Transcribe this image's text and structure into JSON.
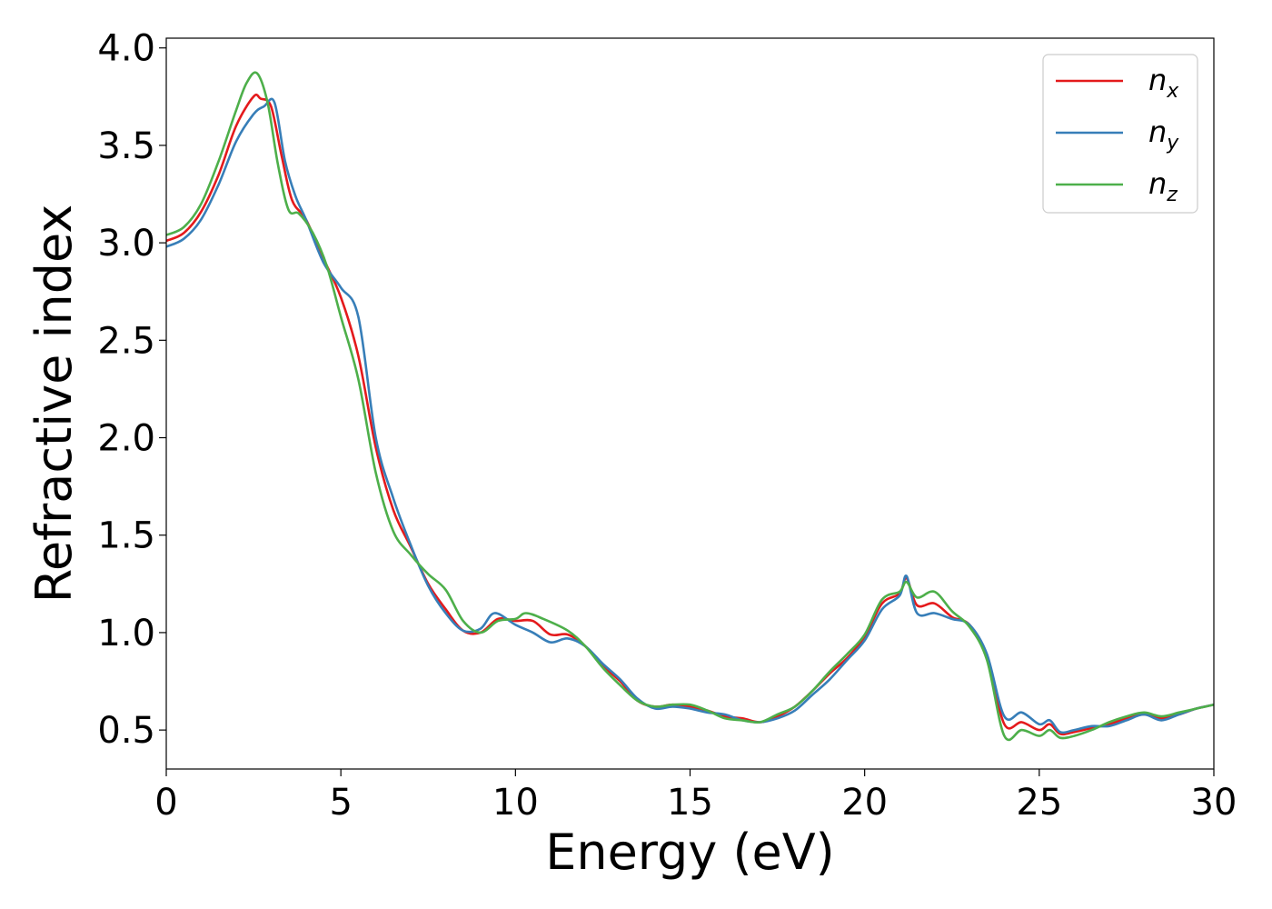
{
  "chart_data": {
    "type": "line",
    "title": "",
    "xlabel": "Energy (eV)",
    "ylabel": "Refractive index",
    "xlim": [
      0,
      30
    ],
    "ylim": [
      0.3,
      4.05
    ],
    "xticks": [
      0,
      5,
      10,
      15,
      20,
      25,
      30
    ],
    "xtick_labels": [
      "0",
      "5",
      "10",
      "15",
      "20",
      "25",
      "30"
    ],
    "yticks": [
      0.5,
      1.0,
      1.5,
      2.0,
      2.5,
      3.0,
      3.5,
      4.0
    ],
    "ytick_labels": [
      "0.5",
      "1.0",
      "1.5",
      "2.0",
      "2.5",
      "3.0",
      "3.5",
      "4.0"
    ],
    "grid": false,
    "legend_position": "top-right",
    "series": [
      {
        "name": "n_x",
        "label_base": "n",
        "label_sub": "x",
        "color": "#e41a1c",
        "x": [
          0,
          0.5,
          1.0,
          1.5,
          2.0,
          2.5,
          2.7,
          3.0,
          3.3,
          3.6,
          4.0,
          4.5,
          5.0,
          5.5,
          6.0,
          6.5,
          7.0,
          7.5,
          8.0,
          8.5,
          9.0,
          9.5,
          10.0,
          10.5,
          11.0,
          11.5,
          12.0,
          12.5,
          13.0,
          13.5,
          14.0,
          14.5,
          15.0,
          15.5,
          16.0,
          16.5,
          17.0,
          17.5,
          18.0,
          18.5,
          19.0,
          19.5,
          20.0,
          20.5,
          21.0,
          21.2,
          21.5,
          22.0,
          22.5,
          23.0,
          23.5,
          24.0,
          24.5,
          25.0,
          25.3,
          25.6,
          26.0,
          26.5,
          27.0,
          27.5,
          28.0,
          28.5,
          29.0,
          29.5,
          30.0
        ],
        "y": [
          3.01,
          3.05,
          3.16,
          3.35,
          3.6,
          3.75,
          3.74,
          3.7,
          3.45,
          3.22,
          3.12,
          2.92,
          2.72,
          2.42,
          1.95,
          1.63,
          1.44,
          1.25,
          1.12,
          1.01,
          1.0,
          1.07,
          1.06,
          1.06,
          0.99,
          0.99,
          0.93,
          0.83,
          0.75,
          0.65,
          0.62,
          0.63,
          0.62,
          0.6,
          0.57,
          0.56,
          0.54,
          0.57,
          0.62,
          0.7,
          0.79,
          0.87,
          0.98,
          1.15,
          1.2,
          1.28,
          1.14,
          1.15,
          1.08,
          1.04,
          0.88,
          0.53,
          0.54,
          0.5,
          0.53,
          0.48,
          0.49,
          0.51,
          0.53,
          0.56,
          0.58,
          0.56,
          0.58,
          0.61,
          0.63
        ]
      },
      {
        "name": "n_y",
        "label_base": "n",
        "label_sub": "y",
        "color": "#377eb8",
        "x": [
          0,
          0.5,
          1.0,
          1.5,
          2.0,
          2.5,
          2.8,
          3.1,
          3.4,
          3.7,
          4.0,
          4.5,
          5.0,
          5.5,
          6.0,
          6.5,
          7.0,
          7.5,
          8.0,
          8.5,
          9.0,
          9.4,
          10.0,
          10.5,
          11.0,
          11.5,
          12.0,
          12.5,
          13.0,
          13.5,
          14.0,
          14.5,
          15.0,
          15.5,
          16.0,
          16.5,
          17.0,
          17.5,
          18.0,
          18.5,
          19.0,
          19.5,
          20.0,
          20.5,
          21.0,
          21.2,
          21.5,
          22.0,
          22.5,
          23.0,
          23.5,
          24.0,
          24.5,
          25.0,
          25.3,
          25.6,
          26.0,
          26.5,
          27.0,
          27.5,
          28.0,
          28.5,
          29.0,
          29.5,
          30.0
        ],
        "y": [
          2.98,
          3.02,
          3.12,
          3.3,
          3.52,
          3.66,
          3.7,
          3.72,
          3.42,
          3.24,
          3.12,
          2.9,
          2.77,
          2.62,
          2.0,
          1.69,
          1.45,
          1.24,
          1.1,
          1.01,
          1.02,
          1.1,
          1.04,
          1.0,
          0.95,
          0.97,
          0.93,
          0.84,
          0.76,
          0.66,
          0.61,
          0.62,
          0.61,
          0.59,
          0.58,
          0.55,
          0.54,
          0.56,
          0.6,
          0.68,
          0.76,
          0.86,
          0.96,
          1.12,
          1.19,
          1.29,
          1.1,
          1.1,
          1.07,
          1.04,
          0.89,
          0.57,
          0.59,
          0.53,
          0.55,
          0.49,
          0.5,
          0.52,
          0.52,
          0.55,
          0.58,
          0.55,
          0.58,
          0.61,
          0.63
        ]
      },
      {
        "name": "n_z",
        "label_base": "n",
        "label_sub": "z",
        "color": "#4daf4a",
        "x": [
          0,
          0.5,
          1.0,
          1.5,
          2.0,
          2.3,
          2.6,
          2.9,
          3.2,
          3.5,
          3.8,
          4.2,
          4.6,
          5.0,
          5.5,
          6.0,
          6.5,
          7.0,
          7.5,
          8.0,
          8.5,
          9.0,
          9.5,
          10.0,
          10.3,
          10.8,
          11.5,
          12.0,
          12.5,
          13.0,
          13.5,
          14.0,
          14.5,
          15.0,
          15.5,
          16.0,
          16.5,
          17.0,
          17.5,
          18.0,
          18.5,
          19.0,
          19.5,
          20.0,
          20.5,
          21.0,
          21.2,
          21.5,
          22.0,
          22.5,
          23.0,
          23.5,
          24.0,
          24.5,
          25.0,
          25.3,
          25.6,
          26.0,
          26.5,
          27.0,
          27.5,
          28.0,
          28.5,
          29.0,
          29.5,
          30.0
        ],
        "y": [
          3.04,
          3.08,
          3.2,
          3.42,
          3.68,
          3.82,
          3.87,
          3.72,
          3.4,
          3.17,
          3.15,
          3.05,
          2.88,
          2.62,
          2.3,
          1.82,
          1.52,
          1.4,
          1.3,
          1.22,
          1.06,
          1.0,
          1.06,
          1.07,
          1.1,
          1.07,
          1.01,
          0.93,
          0.82,
          0.73,
          0.65,
          0.62,
          0.63,
          0.63,
          0.6,
          0.56,
          0.55,
          0.54,
          0.58,
          0.62,
          0.7,
          0.8,
          0.89,
          0.99,
          1.17,
          1.21,
          1.26,
          1.18,
          1.21,
          1.11,
          1.03,
          0.86,
          0.47,
          0.5,
          0.47,
          0.5,
          0.46,
          0.47,
          0.5,
          0.54,
          0.57,
          0.59,
          0.57,
          0.59,
          0.61,
          0.63
        ]
      }
    ]
  }
}
